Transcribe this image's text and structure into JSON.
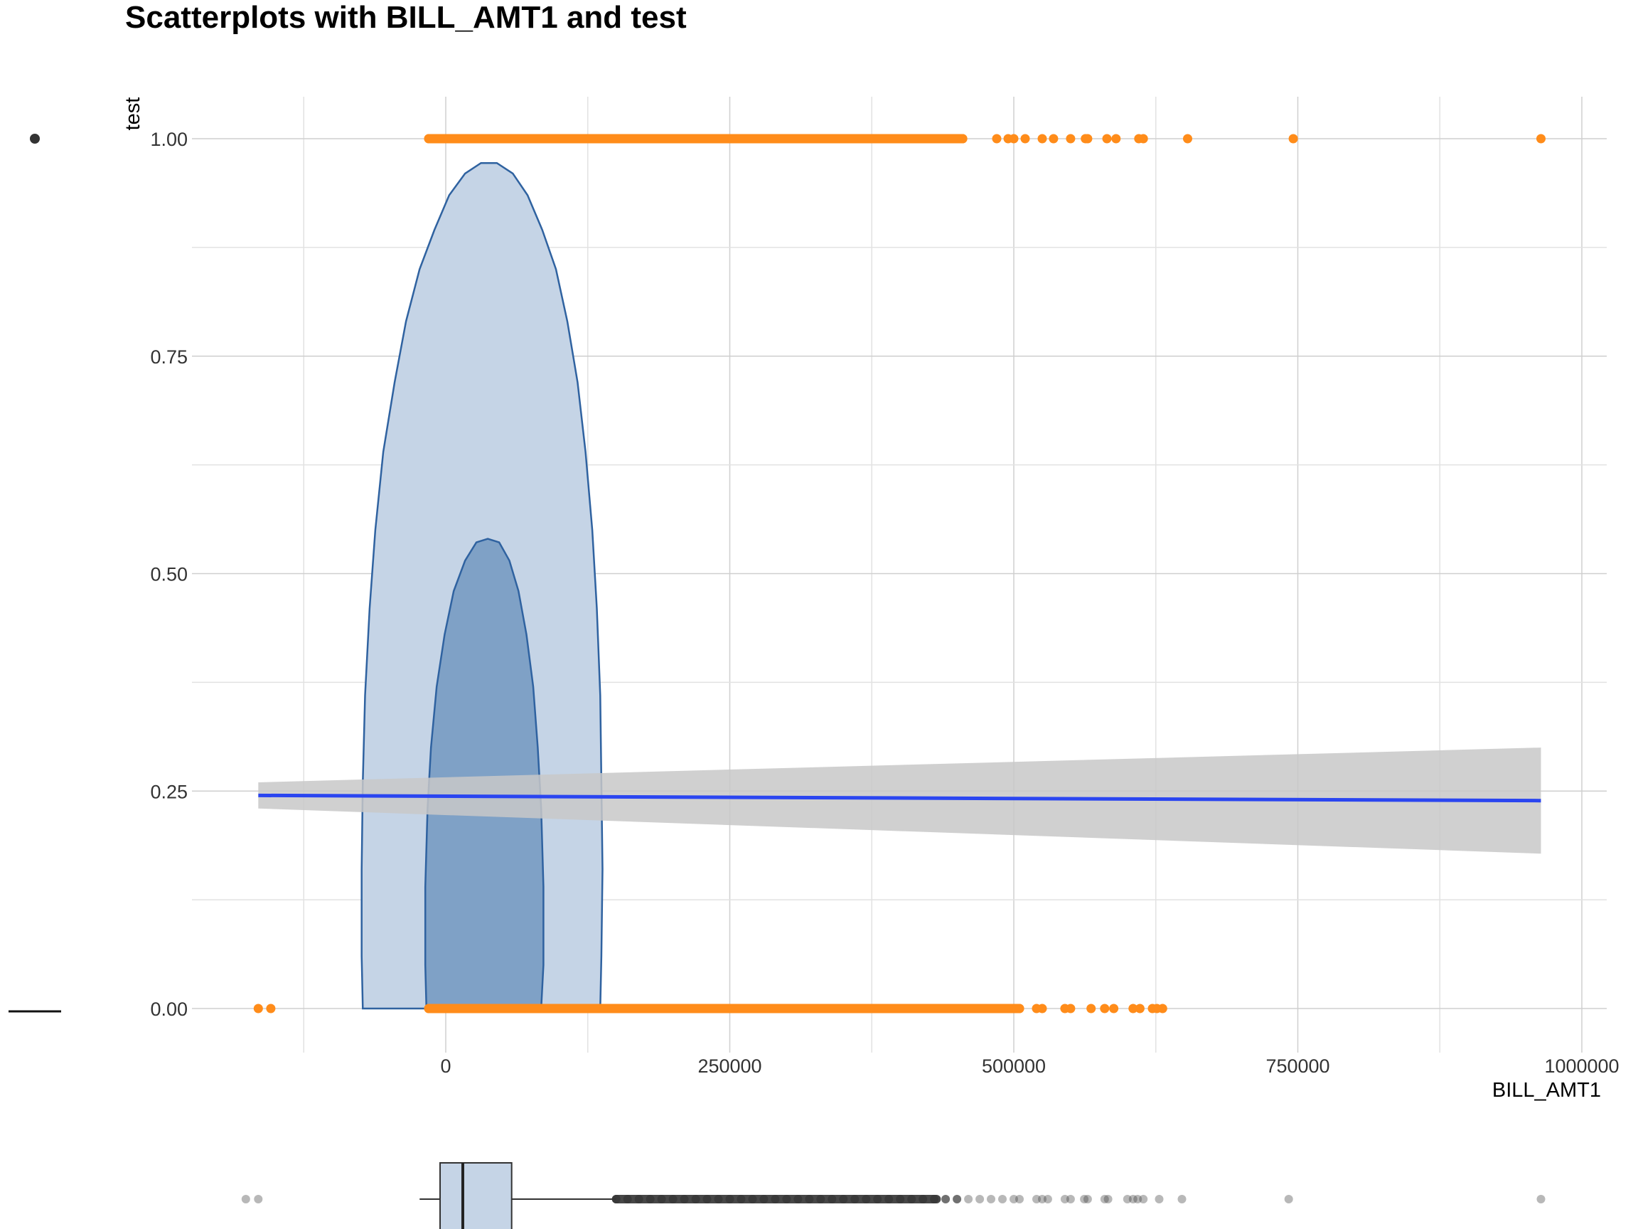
{
  "chart_data": {
    "type": "scatter",
    "title": "Scatterplots with BILL_AMT1 and test",
    "xlabel": "BILL_AMT1",
    "ylabel": "test",
    "xlim": [
      -210000,
      1020000
    ],
    "ylim": [
      -0.05,
      1.05
    ],
    "x_ticks": [
      0,
      250000,
      500000,
      750000,
      1000000
    ],
    "x_tick_labels": [
      "0",
      "250000",
      "500000",
      "750000",
      "1000000"
    ],
    "y_ticks": [
      0.0,
      0.25,
      0.5,
      0.75,
      1.0
    ],
    "y_tick_labels": [
      "0.00",
      "0.25",
      "0.50",
      "0.75",
      "1.00"
    ],
    "grid": true,
    "colors": {
      "points": "#ff8c1a",
      "fit_line": "#2a45f0",
      "confidence_band": "#c8c8c8",
      "density_outer_fill": "#c5d4e6",
      "density_inner_fill": "#7fa1c6",
      "density_stroke": "#2f62a0",
      "boxplot_fill": "#c5d4e6",
      "boxplot_outliers": "#333333"
    },
    "series": [
      {
        "name": "",
        "type": "scatter",
        "y_value": 1,
        "x_values": [
          -15000,
          -5000,
          0,
          5000,
          10000,
          15000,
          20000,
          25000,
          30000,
          40000,
          50000,
          60000,
          70000,
          80000,
          90000,
          100000,
          110000,
          120000,
          130000,
          140000,
          150000,
          160000,
          170000,
          180000,
          190000,
          200000,
          210000,
          220000,
          230000,
          240000,
          250000,
          260000,
          270000,
          280000,
          290000,
          300000,
          310000,
          320000,
          330000,
          340000,
          350000,
          360000,
          370000,
          380000,
          390000,
          400000,
          410000,
          420000,
          430000,
          440000,
          450000,
          455000,
          485000,
          495000,
          500000,
          510000,
          525000,
          535000,
          550000,
          563000,
          565000,
          582000,
          590000,
          610000,
          614000,
          653000,
          746000,
          964000
        ]
      },
      {
        "name": "",
        "type": "scatter",
        "y_value": 0,
        "x_values": [
          -165000,
          -154000,
          -15000,
          -5000,
          0,
          5000,
          10000,
          15000,
          20000,
          25000,
          30000,
          40000,
          50000,
          60000,
          70000,
          80000,
          90000,
          100000,
          110000,
          120000,
          130000,
          140000,
          150000,
          160000,
          170000,
          180000,
          190000,
          200000,
          210000,
          220000,
          230000,
          240000,
          250000,
          260000,
          270000,
          280000,
          290000,
          300000,
          310000,
          320000,
          330000,
          340000,
          350000,
          360000,
          370000,
          380000,
          390000,
          400000,
          410000,
          420000,
          430000,
          440000,
          450000,
          460000,
          470000,
          480000,
          490000,
          500000,
          505000,
          520000,
          525000,
          545000,
          550000,
          568000,
          580000,
          588000,
          605000,
          611000,
          622000,
          626000,
          631000
        ]
      },
      {
        "name": "",
        "type": "line",
        "x": [
          -165000,
          964000
        ],
        "y": [
          0.245,
          0.239
        ],
        "band_upper": [
          0.26,
          0.3
        ],
        "band_lower": [
          0.23,
          0.178
        ]
      }
    ],
    "density_contours": [
      {
        "level": "outer",
        "points": [
          [
            -73000,
            0.0
          ],
          [
            -74000,
            0.06
          ],
          [
            -74000,
            0.16
          ],
          [
            -73000,
            0.26
          ],
          [
            -71000,
            0.36
          ],
          [
            -67000,
            0.46
          ],
          [
            -62000,
            0.55
          ],
          [
            -55000,
            0.64
          ],
          [
            -45000,
            0.72
          ],
          [
            -35000,
            0.79
          ],
          [
            -23000,
            0.85
          ],
          [
            -10000,
            0.895
          ],
          [
            3000,
            0.935
          ],
          [
            17000,
            0.96
          ],
          [
            31000,
            0.972
          ],
          [
            45000,
            0.972
          ],
          [
            59000,
            0.96
          ],
          [
            72000,
            0.935
          ],
          [
            85000,
            0.895
          ],
          [
            97000,
            0.85
          ],
          [
            107000,
            0.79
          ],
          [
            116000,
            0.72
          ],
          [
            123000,
            0.64
          ],
          [
            129000,
            0.55
          ],
          [
            133000,
            0.46
          ],
          [
            136000,
            0.36
          ],
          [
            137000,
            0.26
          ],
          [
            138000,
            0.16
          ],
          [
            137000,
            0.06
          ],
          [
            136000,
            0.0
          ]
        ]
      },
      {
        "level": "inner",
        "points": [
          [
            -17000,
            0.0
          ],
          [
            -18000,
            0.05
          ],
          [
            -18000,
            0.14
          ],
          [
            -16000,
            0.23
          ],
          [
            -13000,
            0.3
          ],
          [
            -8000,
            0.37
          ],
          [
            -1000,
            0.43
          ],
          [
            7000,
            0.48
          ],
          [
            17000,
            0.515
          ],
          [
            27000,
            0.536
          ],
          [
            37000,
            0.54
          ],
          [
            47000,
            0.536
          ],
          [
            56000,
            0.515
          ],
          [
            64000,
            0.48
          ],
          [
            71000,
            0.43
          ],
          [
            77000,
            0.37
          ],
          [
            81000,
            0.3
          ],
          [
            84000,
            0.23
          ],
          [
            86000,
            0.14
          ],
          [
            86000,
            0.05
          ],
          [
            84000,
            0.0
          ]
        ]
      }
    ],
    "boxplot": {
      "q1": -5000,
      "median": 15000,
      "q3": 58000,
      "whisker_low": -23000,
      "whisker_high": 150000,
      "outliers": [
        -176000,
        -165000,
        150000,
        160000,
        170000,
        180000,
        190000,
        200000,
        210000,
        220000,
        230000,
        240000,
        250000,
        260000,
        270000,
        280000,
        290000,
        300000,
        310000,
        320000,
        330000,
        340000,
        350000,
        360000,
        370000,
        380000,
        390000,
        400000,
        410000,
        420000,
        430000,
        440000,
        450000,
        460000,
        470000,
        480000,
        490000,
        500000,
        505000,
        520000,
        525000,
        530000,
        545000,
        550000,
        562000,
        565000,
        580000,
        583000,
        600000,
        605000,
        609000,
        614000,
        628000,
        648000,
        742000,
        964000
      ]
    }
  }
}
